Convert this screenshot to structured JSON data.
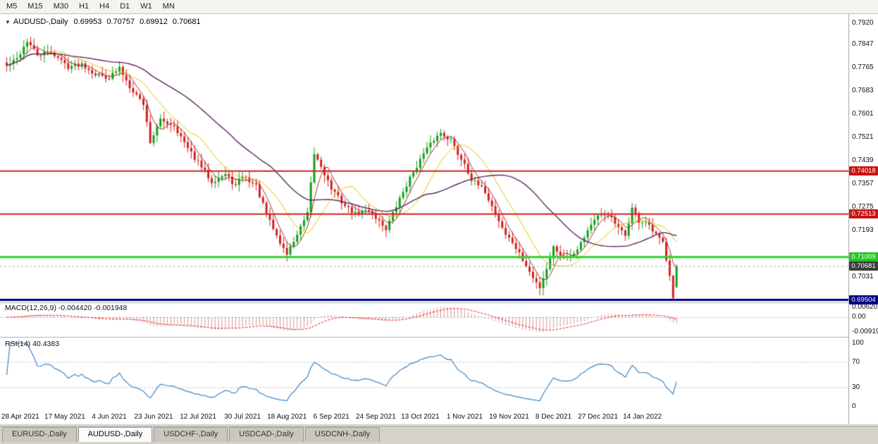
{
  "toolbar": {
    "timeframes": [
      "M5",
      "M15",
      "M30",
      "H1",
      "H4",
      "D1",
      "W1",
      "MN"
    ]
  },
  "chart": {
    "dropdown_icon": "▼",
    "symbol_title": "AUDUSD-,Daily",
    "ohlc": {
      "open": "0.69953",
      "high": "0.70757",
      "low": "0.69912",
      "close": "0.70681"
    },
    "price_ticks": [
      "0.7920",
      "0.7847",
      "0.7765",
      "0.7683",
      "0.7601",
      "0.7521",
      "0.7439",
      "0.7357",
      "0.7275",
      "0.7193",
      "0.7031"
    ],
    "levels": [
      {
        "price": 0.74018,
        "label": "0.74018",
        "line_color": "#cc2222",
        "tag_color": "#cc1111",
        "style": "solid",
        "width": 2
      },
      {
        "price": 0.72513,
        "label": "0.72513",
        "line_color": "#cc2222",
        "tag_color": "#cc1111",
        "style": "solid",
        "width": 2
      },
      {
        "price": 0.71009,
        "label": "0.71009",
        "line_color": "#2dd42d",
        "tag_color": "#22c522",
        "style": "solid",
        "width": 3
      },
      {
        "price": 0.70681,
        "label": "0.70681",
        "line_color": "#b0b0b0",
        "tag_color": "#3c3c3c",
        "style": "dashed",
        "width": 1
      },
      {
        "price": 0.69504,
        "label": "0.69504",
        "line_color": "#000080",
        "tag_color": "#000080",
        "style": "solid",
        "width": 3
      }
    ],
    "dates": [
      "28 Apr 2021",
      "17 May 2021",
      "4 Jun 2021",
      "23 Jun 2021",
      "12 Jul 2021",
      "30 Jul 2021",
      "18 Aug 2021",
      "6 Sep 2021",
      "24 Sep 2021",
      "13 Oct 2021",
      "1 Nov 2021",
      "19 Nov 2021",
      "8 Dec 2021",
      "27 Dec 2021",
      "14 Jan 2022"
    ]
  },
  "indicators": {
    "macd": {
      "label": "MACD(12,26,9) -0.004420 -0.001948",
      "ticks": [
        "0.006201",
        "0.00",
        "-0.009197"
      ],
      "fast": 12,
      "slow": 26,
      "signal": 9
    },
    "rsi": {
      "label": "RSI(14) 40.4383",
      "ticks": [
        "100",
        "70",
        "30",
        "0"
      ],
      "period": 14
    }
  },
  "tabs": [
    {
      "label": "EURUSD-,Daily",
      "active": false
    },
    {
      "label": "AUDUSD-,Daily",
      "active": true
    },
    {
      "label": "USDCHF-,Daily",
      "active": false
    },
    {
      "label": "USDCAD-,Daily",
      "active": false
    },
    {
      "label": "USDCNH-,Daily",
      "active": false
    }
  ],
  "chart_data": {
    "type": "candlestick",
    "symbol": "AUDUSD",
    "timeframe": "Daily",
    "visible_range": {
      "start": "28 Apr 2021",
      "end": "Jan 2022",
      "price_min": 0.6947,
      "price_max": 0.7947
    },
    "last_candle": {
      "open": 0.69953,
      "high": 0.70757,
      "low": 0.69912,
      "close": 0.70681
    },
    "anchors": [
      [
        0,
        0.777
      ],
      [
        3,
        0.7795
      ],
      [
        6,
        0.7858
      ],
      [
        9,
        0.7808
      ],
      [
        13,
        0.782
      ],
      [
        18,
        0.7768
      ],
      [
        22,
        0.7778
      ],
      [
        26,
        0.7742
      ],
      [
        30,
        0.773
      ],
      [
        33,
        0.7762
      ],
      [
        36,
        0.77
      ],
      [
        40,
        0.7638
      ],
      [
        42,
        0.7505
      ],
      [
        45,
        0.758
      ],
      [
        49,
        0.7562
      ],
      [
        53,
        0.748
      ],
      [
        56,
        0.7432
      ],
      [
        60,
        0.7366
      ],
      [
        64,
        0.739
      ],
      [
        67,
        0.735
      ],
      [
        69,
        0.7386
      ],
      [
        73,
        0.735
      ],
      [
        76,
        0.725
      ],
      [
        80,
        0.715
      ],
      [
        82,
        0.7112
      ],
      [
        85,
        0.718
      ],
      [
        88,
        0.725
      ],
      [
        90,
        0.7462
      ],
      [
        92,
        0.742
      ],
      [
        95,
        0.734
      ],
      [
        99,
        0.728
      ],
      [
        102,
        0.7252
      ],
      [
        106,
        0.7266
      ],
      [
        108,
        0.724
      ],
      [
        111,
        0.72
      ],
      [
        113,
        0.7252
      ],
      [
        116,
        0.733
      ],
      [
        119,
        0.74
      ],
      [
        122,
        0.7462
      ],
      [
        125,
        0.7512
      ],
      [
        127,
        0.7536
      ],
      [
        130,
        0.7512
      ],
      [
        132,
        0.7462
      ],
      [
        134,
        0.743
      ],
      [
        136,
        0.7372
      ],
      [
        140,
        0.733
      ],
      [
        143,
        0.7252
      ],
      [
        146,
        0.718
      ],
      [
        148,
        0.7152
      ],
      [
        151,
        0.709
      ],
      [
        154,
        0.7026
      ],
      [
        156,
        0.6996
      ],
      [
        158,
        0.7062
      ],
      [
        160,
        0.7136
      ],
      [
        163,
        0.71
      ],
      [
        166,
        0.7116
      ],
      [
        168,
        0.7152
      ],
      [
        171,
        0.7216
      ],
      [
        173,
        0.724
      ],
      [
        176,
        0.7252
      ],
      [
        179,
        0.72
      ],
      [
        181,
        0.7176
      ],
      [
        183,
        0.7272
      ],
      [
        185,
        0.7226
      ],
      [
        187,
        0.7222
      ],
      [
        189,
        0.719
      ],
      [
        192,
        0.715
      ],
      [
        194,
        0.7042
      ],
      [
        195,
        0.6962
      ],
      [
        196,
        0.7068
      ]
    ],
    "moving_averages": [
      {
        "period": 5,
        "color": "#a03535"
      },
      {
        "period": 13,
        "color": "#e3c400"
      },
      {
        "period": 34,
        "color": "#5e2a62"
      }
    ],
    "colors": {
      "up": "#0fa018",
      "down": "#d42020",
      "macd_hist": "#b03030",
      "macd_signal": "#ee1111",
      "rsi": "#3d85c8"
    }
  }
}
